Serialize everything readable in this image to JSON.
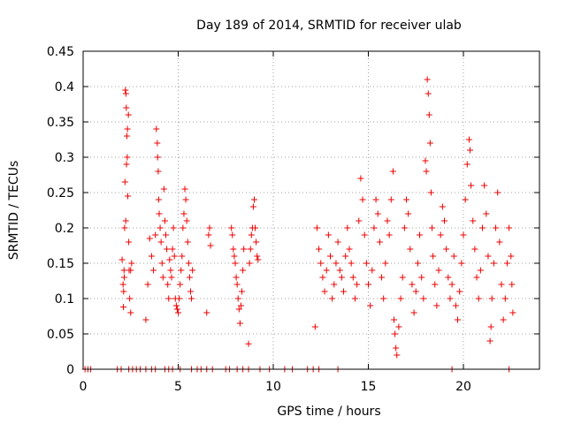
{
  "chart_data": {
    "type": "scatter",
    "title": "Day 189 of 2014, SRMTID for receiver ulab",
    "xlabel": "GPS time / hours",
    "ylabel": "SRMTID / TECUs",
    "xlim": [
      0,
      24
    ],
    "ylim": [
      0,
      0.45
    ],
    "x_ticks": [
      "0",
      "5",
      "10",
      "15",
      "20"
    ],
    "y_ticks": [
      "0",
      "0.05",
      "0.1",
      "0.15",
      "0.2",
      "0.25",
      "0.3",
      "0.35",
      "0.4",
      "0.45"
    ],
    "grid": true,
    "marker": "plus",
    "series": [
      {
        "name": "SRMTID",
        "color": "#ee0000",
        "points": [
          [
            0.1,
            0.0
          ],
          [
            0.25,
            0.0
          ],
          [
            0.4,
            0.0
          ],
          [
            1.8,
            0.0
          ],
          [
            2.0,
            0.0
          ],
          [
            2.4,
            0.0
          ],
          [
            2.6,
            0.0
          ],
          [
            2.8,
            0.0
          ],
          [
            3.0,
            0.0
          ],
          [
            3.3,
            0.0
          ],
          [
            3.6,
            0.0
          ],
          [
            3.8,
            0.0
          ],
          [
            4.3,
            0.0
          ],
          [
            4.5,
            0.0
          ],
          [
            4.7,
            0.0
          ],
          [
            5.1,
            0.0
          ],
          [
            5.7,
            0.0
          ],
          [
            6.0,
            0.0
          ],
          [
            6.2,
            0.0
          ],
          [
            6.5,
            0.0
          ],
          [
            6.8,
            0.0
          ],
          [
            7.5,
            0.0
          ],
          [
            7.7,
            0.0
          ],
          [
            8.1,
            0.0
          ],
          [
            8.4,
            0.0
          ],
          [
            8.7,
            0.0
          ],
          [
            9.3,
            0.0
          ],
          [
            9.8,
            0.0
          ],
          [
            10.6,
            0.0
          ],
          [
            11.0,
            0.0
          ],
          [
            11.8,
            0.0
          ],
          [
            12.1,
            0.0
          ],
          [
            12.4,
            0.0
          ],
          [
            13.4,
            0.0
          ],
          [
            19.4,
            0.0
          ],
          [
            22.4,
            0.0
          ],
          [
            2.05,
            0.155
          ],
          [
            2.1,
            0.12
          ],
          [
            2.12,
            0.088
          ],
          [
            2.15,
            0.14
          ],
          [
            2.18,
            0.2
          ],
          [
            2.2,
            0.265
          ],
          [
            2.22,
            0.395
          ],
          [
            2.25,
            0.39
          ],
          [
            2.27,
            0.37
          ],
          [
            2.3,
            0.33
          ],
          [
            2.32,
            0.3
          ],
          [
            2.35,
            0.245
          ],
          [
            2.4,
            0.18
          ],
          [
            2.42,
            0.14
          ],
          [
            2.45,
            0.1
          ],
          [
            2.5,
            0.08
          ],
          [
            2.38,
            0.36
          ],
          [
            2.33,
            0.34
          ],
          [
            2.28,
            0.29
          ],
          [
            2.24,
            0.21
          ],
          [
            2.16,
            0.13
          ],
          [
            2.13,
            0.11
          ],
          [
            2.5,
            0.14
          ],
          [
            2.55,
            0.15
          ],
          [
            3.3,
            0.07
          ],
          [
            3.4,
            0.12
          ],
          [
            3.5,
            0.185
          ],
          [
            3.6,
            0.16
          ],
          [
            3.7,
            0.14
          ],
          [
            3.8,
            0.19
          ],
          [
            3.85,
            0.34
          ],
          [
            3.9,
            0.32
          ],
          [
            3.92,
            0.3
          ],
          [
            3.95,
            0.28
          ],
          [
            3.97,
            0.24
          ],
          [
            4.0,
            0.22
          ],
          [
            4.05,
            0.2
          ],
          [
            4.1,
            0.18
          ],
          [
            4.15,
            0.15
          ],
          [
            4.2,
            0.13
          ],
          [
            4.25,
            0.255
          ],
          [
            4.3,
            0.21
          ],
          [
            4.35,
            0.19
          ],
          [
            4.4,
            0.17
          ],
          [
            4.45,
            0.12
          ],
          [
            4.5,
            0.1
          ],
          [
            4.55,
            0.155
          ],
          [
            4.6,
            0.14
          ],
          [
            4.65,
            0.13
          ],
          [
            4.7,
            0.17
          ],
          [
            4.75,
            0.2
          ],
          [
            4.8,
            0.16
          ],
          [
            4.85,
            0.1
          ],
          [
            4.9,
            0.09
          ],
          [
            4.95,
            0.085
          ],
          [
            5.0,
            0.08
          ],
          [
            5.05,
            0.1
          ],
          [
            5.1,
            0.12
          ],
          [
            5.15,
            0.14
          ],
          [
            5.2,
            0.16
          ],
          [
            5.25,
            0.2
          ],
          [
            5.3,
            0.22
          ],
          [
            5.35,
            0.255
          ],
          [
            5.4,
            0.24
          ],
          [
            5.45,
            0.21
          ],
          [
            5.5,
            0.18
          ],
          [
            5.55,
            0.15
          ],
          [
            5.6,
            0.13
          ],
          [
            5.65,
            0.11
          ],
          [
            5.7,
            0.1
          ],
          [
            5.75,
            0.14
          ],
          [
            6.5,
            0.08
          ],
          [
            6.6,
            0.19
          ],
          [
            6.65,
            0.2
          ],
          [
            6.7,
            0.175
          ],
          [
            7.8,
            0.2
          ],
          [
            7.85,
            0.19
          ],
          [
            7.9,
            0.17
          ],
          [
            7.95,
            0.16
          ],
          [
            8.0,
            0.15
          ],
          [
            8.05,
            0.13
          ],
          [
            8.1,
            0.12
          ],
          [
            8.15,
            0.1
          ],
          [
            8.2,
            0.085
          ],
          [
            8.25,
            0.065
          ],
          [
            8.3,
            0.09
          ],
          [
            8.35,
            0.11
          ],
          [
            8.4,
            0.14
          ],
          [
            8.45,
            0.17
          ],
          [
            8.7,
            0.036
          ],
          [
            8.75,
            0.15
          ],
          [
            8.8,
            0.17
          ],
          [
            8.85,
            0.19
          ],
          [
            8.9,
            0.2
          ],
          [
            8.95,
            0.23
          ],
          [
            9.0,
            0.24
          ],
          [
            9.05,
            0.2
          ],
          [
            9.1,
            0.18
          ],
          [
            9.15,
            0.16
          ],
          [
            9.2,
            0.155
          ],
          [
            12.2,
            0.06
          ],
          [
            12.3,
            0.2
          ],
          [
            12.4,
            0.17
          ],
          [
            12.5,
            0.15
          ],
          [
            12.6,
            0.13
          ],
          [
            12.7,
            0.11
          ],
          [
            12.8,
            0.14
          ],
          [
            12.9,
            0.19
          ],
          [
            13.0,
            0.16
          ],
          [
            13.1,
            0.1
          ],
          [
            13.2,
            0.12
          ],
          [
            13.3,
            0.15
          ],
          [
            13.4,
            0.18
          ],
          [
            13.5,
            0.14
          ],
          [
            13.6,
            0.13
          ],
          [
            13.7,
            0.11
          ],
          [
            13.8,
            0.16
          ],
          [
            13.9,
            0.2
          ],
          [
            14.0,
            0.17
          ],
          [
            14.1,
            0.15
          ],
          [
            14.2,
            0.13
          ],
          [
            14.3,
            0.1
          ],
          [
            14.4,
            0.12
          ],
          [
            14.5,
            0.21
          ],
          [
            14.6,
            0.27
          ],
          [
            14.7,
            0.24
          ],
          [
            14.8,
            0.19
          ],
          [
            14.9,
            0.15
          ],
          [
            15.0,
            0.12
          ],
          [
            15.1,
            0.09
          ],
          [
            15.2,
            0.14
          ],
          [
            15.3,
            0.2
          ],
          [
            15.4,
            0.24
          ],
          [
            15.5,
            0.22
          ],
          [
            15.6,
            0.18
          ],
          [
            15.7,
            0.13
          ],
          [
            15.8,
            0.1
          ],
          [
            15.9,
            0.15
          ],
          [
            16.0,
            0.21
          ],
          [
            16.1,
            0.19
          ],
          [
            16.2,
            0.24
          ],
          [
            16.3,
            0.28
          ],
          [
            16.35,
            0.07
          ],
          [
            16.4,
            0.05
          ],
          [
            16.45,
            0.03
          ],
          [
            16.5,
            0.02
          ],
          [
            16.6,
            0.06
          ],
          [
            16.7,
            0.1
          ],
          [
            16.8,
            0.13
          ],
          [
            16.9,
            0.2
          ],
          [
            17.0,
            0.24
          ],
          [
            17.1,
            0.22
          ],
          [
            17.2,
            0.17
          ],
          [
            17.3,
            0.12
          ],
          [
            17.4,
            0.08
          ],
          [
            17.5,
            0.11
          ],
          [
            17.6,
            0.15
          ],
          [
            17.7,
            0.19
          ],
          [
            17.8,
            0.13
          ],
          [
            17.9,
            0.1
          ],
          [
            18.0,
            0.295
          ],
          [
            18.05,
            0.28
          ],
          [
            18.1,
            0.41
          ],
          [
            18.15,
            0.39
          ],
          [
            18.2,
            0.36
          ],
          [
            18.25,
            0.32
          ],
          [
            18.3,
            0.25
          ],
          [
            18.35,
            0.2
          ],
          [
            18.4,
            0.16
          ],
          [
            18.5,
            0.12
          ],
          [
            18.6,
            0.09
          ],
          [
            18.7,
            0.14
          ],
          [
            18.8,
            0.19
          ],
          [
            18.9,
            0.23
          ],
          [
            19.0,
            0.21
          ],
          [
            19.1,
            0.17
          ],
          [
            19.2,
            0.13
          ],
          [
            19.3,
            0.1
          ],
          [
            19.4,
            0.12
          ],
          [
            19.5,
            0.16
          ],
          [
            19.6,
            0.09
          ],
          [
            19.7,
            0.07
          ],
          [
            19.8,
            0.11
          ],
          [
            19.9,
            0.15
          ],
          [
            20.0,
            0.19
          ],
          [
            20.1,
            0.24
          ],
          [
            20.2,
            0.29
          ],
          [
            20.3,
            0.325
          ],
          [
            20.35,
            0.31
          ],
          [
            20.4,
            0.26
          ],
          [
            20.5,
            0.21
          ],
          [
            20.6,
            0.17
          ],
          [
            20.7,
            0.13
          ],
          [
            20.8,
            0.1
          ],
          [
            20.9,
            0.14
          ],
          [
            21.0,
            0.2
          ],
          [
            21.1,
            0.26
          ],
          [
            21.2,
            0.22
          ],
          [
            21.3,
            0.16
          ],
          [
            21.4,
            0.04
          ],
          [
            21.45,
            0.06
          ],
          [
            21.5,
            0.1
          ],
          [
            21.6,
            0.15
          ],
          [
            21.7,
            0.2
          ],
          [
            21.8,
            0.25
          ],
          [
            21.9,
            0.18
          ],
          [
            22.0,
            0.12
          ],
          [
            22.1,
            0.07
          ],
          [
            22.2,
            0.1
          ],
          [
            22.3,
            0.15
          ],
          [
            22.4,
            0.2
          ],
          [
            22.5,
            0.16
          ],
          [
            22.55,
            0.12
          ],
          [
            22.6,
            0.08
          ]
        ]
      }
    ]
  }
}
